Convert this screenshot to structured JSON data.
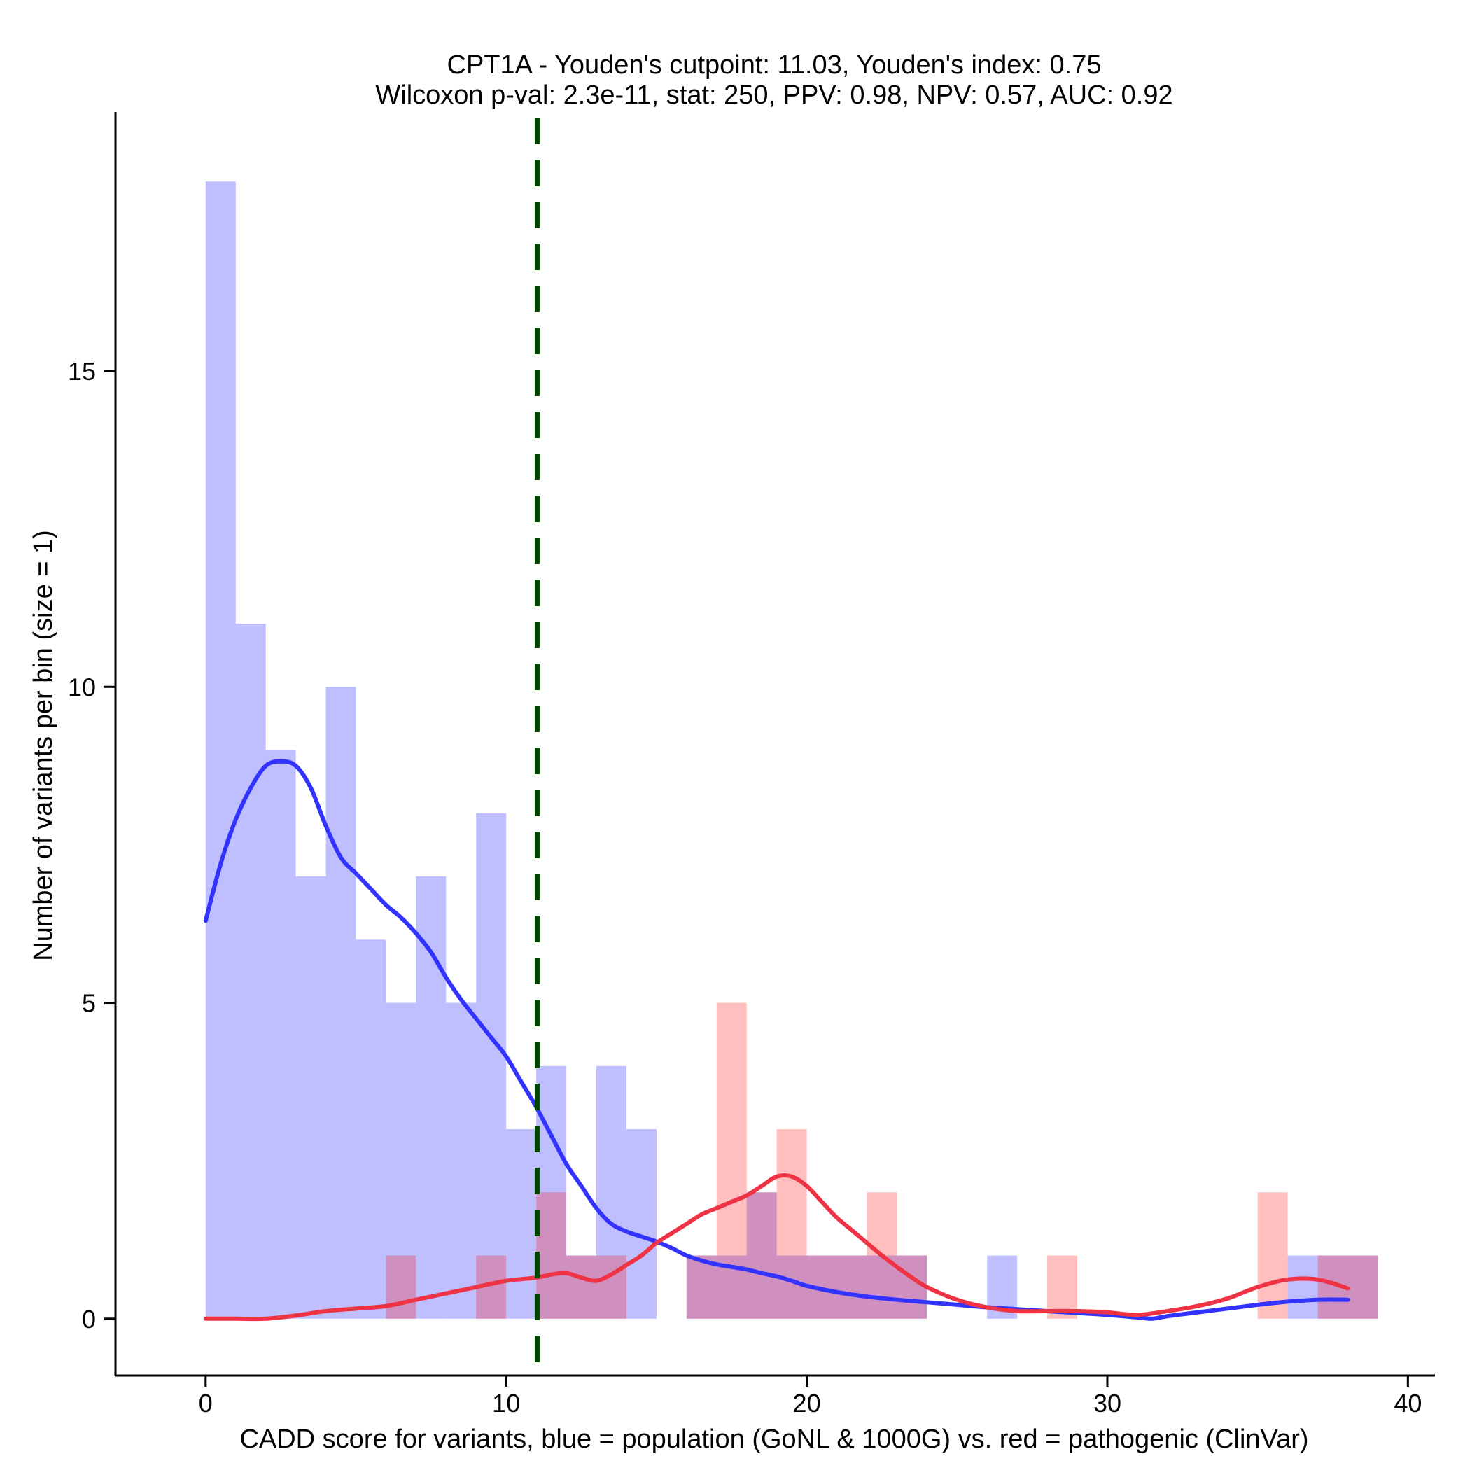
{
  "chart_data": {
    "type": "bar",
    "title_line1": "CPT1A - Youden's cutpoint: 11.03, Youden's index: 0.75",
    "title_line2": "Wilcoxon p-val: 2.3e-11, stat: 250, PPV: 0.98, NPV: 0.57, AUC: 0.92",
    "xlabel": "CADD score for variants, blue = population (GoNL & 1000G) vs. red = pathogenic (ClinVar)",
    "ylabel": "Number of variants per bin (size = 1)",
    "xlim": [
      -3,
      40.9
    ],
    "ylim": [
      -0.9,
      19.1
    ],
    "x_ticks": [
      0,
      10,
      20,
      30,
      40
    ],
    "x_tick_labels": [
      "0",
      "10",
      "20",
      "30",
      "40"
    ],
    "y_ticks": [
      0,
      5,
      10,
      15
    ],
    "y_tick_labels": [
      "0",
      "5",
      "10",
      "15"
    ],
    "bin_size": 1,
    "cutpoint": 11.03,
    "colors": {
      "population_bar": "#0000ff",
      "pathogenic_bar": "#ff0000",
      "population_line": "#3333ff",
      "pathogenic_line": "#ee3344",
      "cutpoint_line": "#004400"
    },
    "series": [
      {
        "name": "population",
        "bin_starts": [
          0,
          1,
          2,
          3,
          4,
          5,
          6,
          7,
          8,
          9,
          10,
          11,
          12,
          13,
          14,
          15,
          16,
          17,
          18,
          19,
          20,
          21,
          22,
          23,
          24,
          25,
          26,
          27,
          28,
          29,
          30,
          31,
          32,
          33,
          34,
          35,
          36,
          37,
          38
        ],
        "counts": [
          18,
          11,
          9,
          7,
          10,
          6,
          5,
          7,
          5,
          8,
          3,
          4,
          1,
          4,
          3,
          0,
          1,
          1,
          2,
          1,
          1,
          1,
          1,
          1,
          0,
          0,
          1,
          0,
          0,
          0,
          0,
          0,
          0,
          0,
          0,
          0,
          1,
          1,
          1
        ]
      },
      {
        "name": "pathogenic",
        "bin_starts": [
          0,
          1,
          2,
          3,
          4,
          5,
          6,
          7,
          8,
          9,
          10,
          11,
          12,
          13,
          14,
          15,
          16,
          17,
          18,
          19,
          20,
          21,
          22,
          23,
          24,
          25,
          26,
          27,
          28,
          29,
          30,
          31,
          32,
          33,
          34,
          35,
          36,
          37,
          38
        ],
        "counts": [
          0,
          0,
          0,
          0,
          0,
          0,
          1,
          0,
          0,
          1,
          0,
          2,
          1,
          1,
          0,
          0,
          1,
          5,
          2,
          3,
          1,
          1,
          2,
          1,
          0,
          0,
          0,
          0,
          1,
          0,
          0,
          0,
          0,
          0,
          0,
          2,
          0,
          1,
          1
        ]
      }
    ],
    "density_lines": [
      {
        "name": "population",
        "x": [
          0,
          0.5,
          1,
          1.5,
          2,
          2.5,
          3,
          3.5,
          4,
          4.5,
          5,
          5.5,
          6,
          6.5,
          7,
          7.5,
          8,
          8.5,
          9,
          9.5,
          10,
          10.5,
          11,
          11.5,
          12,
          12.5,
          13,
          13.5,
          14,
          14.5,
          15,
          15.5,
          16,
          16.5,
          17,
          17.5,
          18,
          18.5,
          19,
          19.5,
          20,
          21,
          22,
          23,
          24,
          25,
          26,
          27,
          28,
          29,
          30,
          31,
          31.5,
          32,
          33,
          34,
          35,
          36,
          37,
          38
        ],
        "y": [
          6.3,
          7.2,
          7.9,
          8.4,
          8.75,
          8.82,
          8.75,
          8.4,
          7.8,
          7.3,
          7.05,
          6.8,
          6.55,
          6.35,
          6.1,
          5.8,
          5.4,
          5.05,
          4.75,
          4.45,
          4.15,
          3.75,
          3.35,
          2.9,
          2.45,
          2.1,
          1.75,
          1.5,
          1.38,
          1.3,
          1.22,
          1.12,
          1.0,
          0.92,
          0.86,
          0.82,
          0.78,
          0.72,
          0.67,
          0.6,
          0.52,
          0.42,
          0.35,
          0.3,
          0.26,
          0.22,
          0.18,
          0.15,
          0.12,
          0.09,
          0.06,
          0.02,
          0.0,
          0.04,
          0.1,
          0.16,
          0.22,
          0.27,
          0.3,
          0.3
        ]
      },
      {
        "name": "pathogenic",
        "x": [
          0,
          1,
          2,
          3,
          4,
          5,
          6,
          7,
          8,
          9,
          10,
          11,
          11.5,
          12,
          12.5,
          13,
          13.5,
          14,
          14.5,
          15,
          15.5,
          16,
          16.5,
          17,
          17.5,
          18,
          18.5,
          19,
          19.5,
          20,
          20.5,
          21,
          21.5,
          22,
          22.5,
          23,
          23.5,
          24,
          25,
          26,
          27,
          28,
          29,
          30,
          31,
          32,
          33,
          34,
          35,
          36,
          37,
          38
        ],
        "y": [
          0,
          0,
          0,
          0.05,
          0.12,
          0.16,
          0.2,
          0.3,
          0.4,
          0.5,
          0.6,
          0.65,
          0.7,
          0.72,
          0.65,
          0.6,
          0.7,
          0.85,
          1.0,
          1.2,
          1.35,
          1.5,
          1.65,
          1.75,
          1.85,
          1.95,
          2.1,
          2.25,
          2.25,
          2.1,
          1.85,
          1.6,
          1.4,
          1.2,
          1.0,
          0.82,
          0.65,
          0.5,
          0.3,
          0.18,
          0.12,
          0.12,
          0.12,
          0.1,
          0.06,
          0.12,
          0.2,
          0.32,
          0.5,
          0.62,
          0.62,
          0.48
        ]
      }
    ]
  }
}
